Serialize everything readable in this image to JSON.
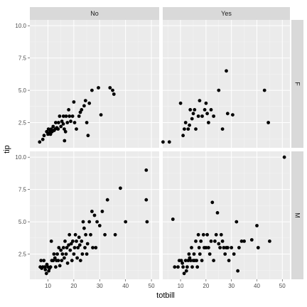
{
  "chart_data": {
    "type": "scatter",
    "xlabel": "totbill",
    "ylabel": "tip",
    "xlim": [
      3,
      53
    ],
    "ylim": [
      0.55,
      10.45
    ],
    "xticks": [
      10,
      20,
      30,
      40,
      50
    ],
    "yticks": [
      2.5,
      5.0,
      7.5,
      10.0
    ],
    "xtick_labels": [
      "10",
      "20",
      "30",
      "40",
      "50"
    ],
    "ytick_labels": [
      "2.5",
      "5.0",
      "7.5",
      "10.0"
    ],
    "col_labels": [
      "No",
      "Yes"
    ],
    "row_labels": [
      "F",
      "M"
    ],
    "grid": true,
    "colors": {
      "panel_bg": "#ebebeb",
      "grid_major": "#ffffff",
      "strip_bg": "#d9d9d9",
      "point": "#000000",
      "tick": "#333333"
    },
    "panels": [
      {
        "col": "No",
        "row": "F",
        "points": [
          [
            6.8,
            1.0
          ],
          [
            8.0,
            1.2
          ],
          [
            8.5,
            1.5
          ],
          [
            9.5,
            1.8
          ],
          [
            10.0,
            1.6
          ],
          [
            10.2,
            2.0
          ],
          [
            10.5,
            1.7
          ],
          [
            10.8,
            1.9
          ],
          [
            11.0,
            1.6
          ],
          [
            11.3,
            2.0
          ],
          [
            11.6,
            1.8
          ],
          [
            12.0,
            2.2
          ],
          [
            12.4,
            1.9
          ],
          [
            12.8,
            2.0
          ],
          [
            13.0,
            2.5
          ],
          [
            13.4,
            2.1
          ],
          [
            13.9,
            2.0
          ],
          [
            14.1,
            2.5
          ],
          [
            14.5,
            3.0
          ],
          [
            15.0,
            2.2
          ],
          [
            15.4,
            2.6
          ],
          [
            15.9,
            2.4
          ],
          [
            16.0,
            3.0
          ],
          [
            16.3,
            2.0
          ],
          [
            16.8,
            1.8
          ],
          [
            16.4,
            1.1
          ],
          [
            17.0,
            3.0
          ],
          [
            17.5,
            2.5
          ],
          [
            18.0,
            3.5
          ],
          [
            18.3,
            3.0
          ],
          [
            18.8,
            2.6
          ],
          [
            19.5,
            3.0
          ],
          [
            20.0,
            4.1
          ],
          [
            20.3,
            2.5
          ],
          [
            21.0,
            2.0
          ],
          [
            22.0,
            3.0
          ],
          [
            22.5,
            3.3
          ],
          [
            23.0,
            3.5
          ],
          [
            24.0,
            3.8
          ],
          [
            24.5,
            4.2
          ],
          [
            25.0,
            2.5
          ],
          [
            25.5,
            1.5
          ],
          [
            26.0,
            4.0
          ],
          [
            27.0,
            5.0
          ],
          [
            29.5,
            5.2
          ],
          [
            30.5,
            3.1
          ],
          [
            34.0,
            5.2
          ],
          [
            35.0,
            5.0
          ],
          [
            35.5,
            4.7
          ]
        ]
      },
      {
        "col": "Yes",
        "row": "F",
        "points": [
          [
            3.1,
            1.0
          ],
          [
            5.6,
            1.0
          ],
          [
            10.0,
            4.0
          ],
          [
            11.0,
            1.5
          ],
          [
            11.5,
            2.0
          ],
          [
            12.0,
            2.5
          ],
          [
            13.0,
            2.0
          ],
          [
            13.5,
            2.3
          ],
          [
            13.8,
            3.5
          ],
          [
            14.5,
            2.8
          ],
          [
            15.0,
            3.2
          ],
          [
            15.5,
            3.5
          ],
          [
            16.0,
            2.0
          ],
          [
            17.0,
            3.0
          ],
          [
            17.5,
            4.2
          ],
          [
            18.5,
            3.0
          ],
          [
            19.5,
            3.5
          ],
          [
            20.0,
            4.0
          ],
          [
            20.5,
            3.2
          ],
          [
            21.0,
            2.5
          ],
          [
            22.0,
            3.5
          ],
          [
            23.0,
            3.0
          ],
          [
            25.0,
            5.0
          ],
          [
            26.5,
            2.0
          ],
          [
            28.0,
            6.5
          ],
          [
            28.5,
            3.2
          ],
          [
            30.5,
            3.1
          ],
          [
            43.0,
            5.0
          ],
          [
            44.5,
            2.5
          ]
        ]
      },
      {
        "col": "No",
        "row": "M",
        "points": [
          [
            7.0,
            1.5
          ],
          [
            7.3,
            2.0
          ],
          [
            7.6,
            1.4
          ],
          [
            8.0,
            1.5
          ],
          [
            8.4,
            2.0
          ],
          [
            8.8,
            1.5
          ],
          [
            9.0,
            1.3
          ],
          [
            9.4,
            1.0
          ],
          [
            9.6,
            1.7
          ],
          [
            10.0,
            1.5
          ],
          [
            10.3,
            1.2
          ],
          [
            10.6,
            1.4
          ],
          [
            11.0,
            1.5
          ],
          [
            11.3,
            3.5
          ],
          [
            11.5,
            2.0
          ],
          [
            12.0,
            2.0
          ],
          [
            12.3,
            2.5
          ],
          [
            12.7,
            2.2
          ],
          [
            13.0,
            1.5
          ],
          [
            13.3,
            2.0
          ],
          [
            13.6,
            2.5
          ],
          [
            14.0,
            2.0
          ],
          [
            14.2,
            3.0
          ],
          [
            14.6,
            1.6
          ],
          [
            15.0,
            2.8
          ],
          [
            15.3,
            2.0
          ],
          [
            15.6,
            2.5
          ],
          [
            16.0,
            3.0
          ],
          [
            16.3,
            2.2
          ],
          [
            16.6,
            3.5
          ],
          [
            17.0,
            2.5
          ],
          [
            17.3,
            3.0
          ],
          [
            17.6,
            1.8
          ],
          [
            18.0,
            3.2
          ],
          [
            18.3,
            4.0
          ],
          [
            18.6,
            2.8
          ],
          [
            19.0,
            3.3
          ],
          [
            19.3,
            2.0
          ],
          [
            19.6,
            3.5
          ],
          [
            20.0,
            2.5
          ],
          [
            20.3,
            3.0
          ],
          [
            20.6,
            4.0
          ],
          [
            21.0,
            3.5
          ],
          [
            21.3,
            2.2
          ],
          [
            21.6,
            3.0
          ],
          [
            22.0,
            3.8
          ],
          [
            22.3,
            3.2
          ],
          [
            22.6,
            2.0
          ],
          [
            23.0,
            3.5
          ],
          [
            23.3,
            2.5
          ],
          [
            23.6,
            5.0
          ],
          [
            24.0,
            4.5
          ],
          [
            24.3,
            3.0
          ],
          [
            24.6,
            4.0
          ],
          [
            25.0,
            2.5
          ],
          [
            25.3,
            3.3
          ],
          [
            26.0,
            5.0
          ],
          [
            26.5,
            4.0
          ],
          [
            27.0,
            5.8
          ],
          [
            27.3,
            3.0
          ],
          [
            28.0,
            5.5
          ],
          [
            28.5,
            3.0
          ],
          [
            29.0,
            5.0
          ],
          [
            30.0,
            4.7
          ],
          [
            31.0,
            5.8
          ],
          [
            32.0,
            4.0
          ],
          [
            33.0,
            6.7
          ],
          [
            36.0,
            4.0
          ],
          [
            38.0,
            7.6
          ],
          [
            40.0,
            5.0
          ],
          [
            48.0,
            9.0
          ],
          [
            48.0,
            6.7
          ],
          [
            48.3,
            5.0
          ]
        ]
      },
      {
        "col": "Yes",
        "row": "M",
        "points": [
          [
            7.0,
            5.2
          ],
          [
            7.7,
            1.5
          ],
          [
            9.0,
            1.5
          ],
          [
            9.5,
            2.0
          ],
          [
            10.3,
            2.0
          ],
          [
            10.7,
            1.8
          ],
          [
            11.0,
            1.5
          ],
          [
            11.4,
            1.0
          ],
          [
            12.0,
            2.0
          ],
          [
            12.3,
            1.2
          ],
          [
            12.6,
            1.5
          ],
          [
            13.0,
            2.0
          ],
          [
            13.3,
            2.5
          ],
          [
            13.6,
            2.2
          ],
          [
            14.0,
            2.0
          ],
          [
            14.3,
            3.0
          ],
          [
            14.6,
            1.5
          ],
          [
            15.0,
            2.0
          ],
          [
            15.3,
            2.5
          ],
          [
            15.6,
            2.0
          ],
          [
            16.0,
            3.5
          ],
          [
            16.3,
            2.0
          ],
          [
            16.6,
            1.5
          ],
          [
            17.0,
            4.0
          ],
          [
            17.3,
            3.0
          ],
          [
            17.6,
            2.5
          ],
          [
            18.0,
            3.5
          ],
          [
            18.4,
            2.0
          ],
          [
            19.0,
            4.0
          ],
          [
            19.3,
            3.0
          ],
          [
            20.0,
            3.0
          ],
          [
            20.5,
            4.0
          ],
          [
            21.0,
            3.0
          ],
          [
            21.5,
            2.5
          ],
          [
            22.0,
            3.5
          ],
          [
            22.5,
            6.5
          ],
          [
            23.0,
            2.0
          ],
          [
            23.5,
            3.5
          ],
          [
            24.0,
            4.0
          ],
          [
            24.5,
            5.7
          ],
          [
            25.0,
            3.3
          ],
          [
            25.5,
            3.0
          ],
          [
            26.0,
            4.0
          ],
          [
            26.5,
            3.5
          ],
          [
            27.0,
            3.0
          ],
          [
            27.5,
            2.5
          ],
          [
            28.0,
            3.0
          ],
          [
            28.5,
            3.0
          ],
          [
            29.0,
            2.0
          ],
          [
            30.0,
            3.0
          ],
          [
            31.0,
            2.5
          ],
          [
            32.0,
            5.0
          ],
          [
            32.5,
            1.2
          ],
          [
            33.0,
            3.0
          ],
          [
            34.0,
            3.5
          ],
          [
            35.0,
            3.5
          ],
          [
            38.0,
            3.6
          ],
          [
            40.0,
            4.7
          ],
          [
            40.5,
            3.0
          ],
          [
            45.0,
            3.5
          ],
          [
            50.8,
            10.0
          ]
        ]
      }
    ]
  }
}
